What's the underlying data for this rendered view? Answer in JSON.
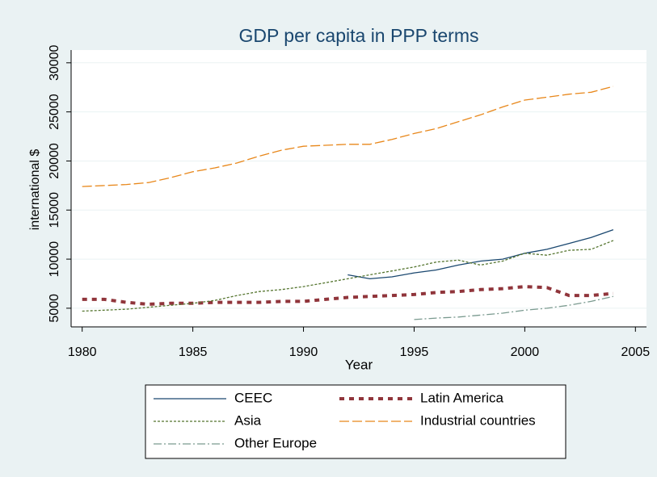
{
  "chart_data": {
    "type": "line",
    "title": "GDP per capita in PPP terms",
    "x_label": "Year",
    "y_label": "international $",
    "x": [
      1980,
      1981,
      1982,
      1983,
      1984,
      1985,
      1986,
      1987,
      1988,
      1989,
      1990,
      1991,
      1992,
      1993,
      1994,
      1995,
      1996,
      1997,
      1998,
      1999,
      2000,
      2001,
      2002,
      2003,
      2004
    ],
    "series": [
      {
        "name": "CEEC",
        "color": "#1a476f",
        "dash": "",
        "width": 1.3,
        "values": [
          null,
          null,
          null,
          null,
          null,
          null,
          null,
          null,
          null,
          null,
          null,
          null,
          8400,
          8000,
          8200,
          8600,
          8900,
          9400,
          9800,
          10000,
          10600,
          11000,
          11600,
          12200,
          13000
        ]
      },
      {
        "name": "Latin America",
        "color": "#90353b",
        "dash": "6 6",
        "width": 4,
        "values": [
          5900,
          5900,
          5600,
          5400,
          5500,
          5500,
          5600,
          5600,
          5600,
          5700,
          5700,
          5900,
          6100,
          6200,
          6300,
          6400,
          6600,
          6700,
          6900,
          7000,
          7200,
          7100,
          6300,
          6300,
          6500
        ]
      },
      {
        "name": "Asia",
        "color": "#55752f",
        "dash": "3 2",
        "width": 1.3,
        "values": [
          4700,
          4800,
          4900,
          5100,
          5300,
          5500,
          5800,
          6300,
          6700,
          6900,
          7200,
          7600,
          8000,
          8400,
          8800,
          9200,
          9700,
          9900,
          9400,
          9800,
          10600,
          10400,
          10900,
          11000,
          11900
        ]
      },
      {
        "name": "Industrial countries",
        "color": "#e8871a",
        "dash": "12 4",
        "width": 1.3,
        "values": [
          17400,
          17500,
          17600,
          17800,
          18300,
          18900,
          19300,
          19800,
          20500,
          21100,
          21500,
          21600,
          21700,
          21700,
          22200,
          22800,
          23300,
          24000,
          24700,
          25500,
          26200,
          26500,
          26800,
          27000,
          27600
        ]
      },
      {
        "name": "Other Europe",
        "color": "#7a9a8f",
        "dash": "10 3 2 3",
        "width": 1.3,
        "values": [
          null,
          null,
          null,
          null,
          null,
          null,
          null,
          null,
          null,
          null,
          null,
          null,
          null,
          null,
          null,
          3850,
          4000,
          4100,
          4300,
          4500,
          4800,
          5000,
          5300,
          5700,
          6200
        ]
      }
    ],
    "xlim": [
      1979.5,
      2005.5
    ],
    "xticks": [
      1980,
      1985,
      1990,
      1995,
      2000,
      2005
    ],
    "ylim": [
      3100,
      31300
    ],
    "yticks": [
      5000,
      10000,
      15000,
      20000,
      25000,
      30000
    ],
    "grid": true,
    "legend_position": "bottom"
  }
}
